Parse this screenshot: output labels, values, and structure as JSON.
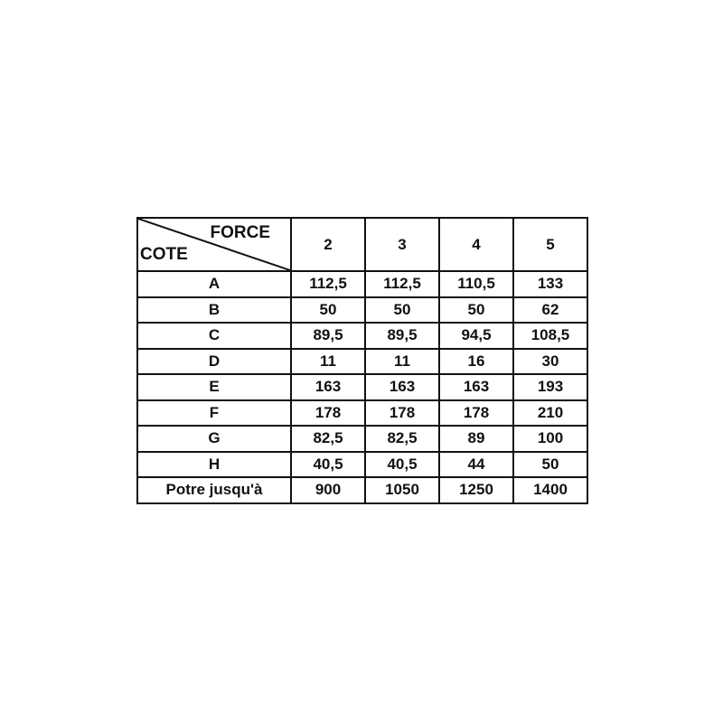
{
  "table": {
    "corner": {
      "column_header": "FORCE",
      "row_header": "COTE"
    },
    "columns": [
      "2",
      "3",
      "4",
      "5"
    ],
    "rows": [
      {
        "label": "A",
        "values": [
          "112,5",
          "112,5",
          "110,5",
          "133"
        ]
      },
      {
        "label": "B",
        "values": [
          "50",
          "50",
          "50",
          "62"
        ]
      },
      {
        "label": "C",
        "values": [
          "89,5",
          "89,5",
          "94,5",
          "108,5"
        ]
      },
      {
        "label": "D",
        "values": [
          "11",
          "11",
          "16",
          "30"
        ]
      },
      {
        "label": "E",
        "values": [
          "163",
          "163",
          "163",
          "193"
        ]
      },
      {
        "label": "F",
        "values": [
          "178",
          "178",
          "178",
          "210"
        ]
      },
      {
        "label": "G",
        "values": [
          "82,5",
          "82,5",
          "89",
          "100"
        ]
      },
      {
        "label": "H",
        "values": [
          "40,5",
          "40,5",
          "44",
          "50"
        ]
      },
      {
        "label": "Potre jusqu'à",
        "values": [
          "900",
          "1050",
          "1250",
          "1400"
        ]
      }
    ]
  }
}
